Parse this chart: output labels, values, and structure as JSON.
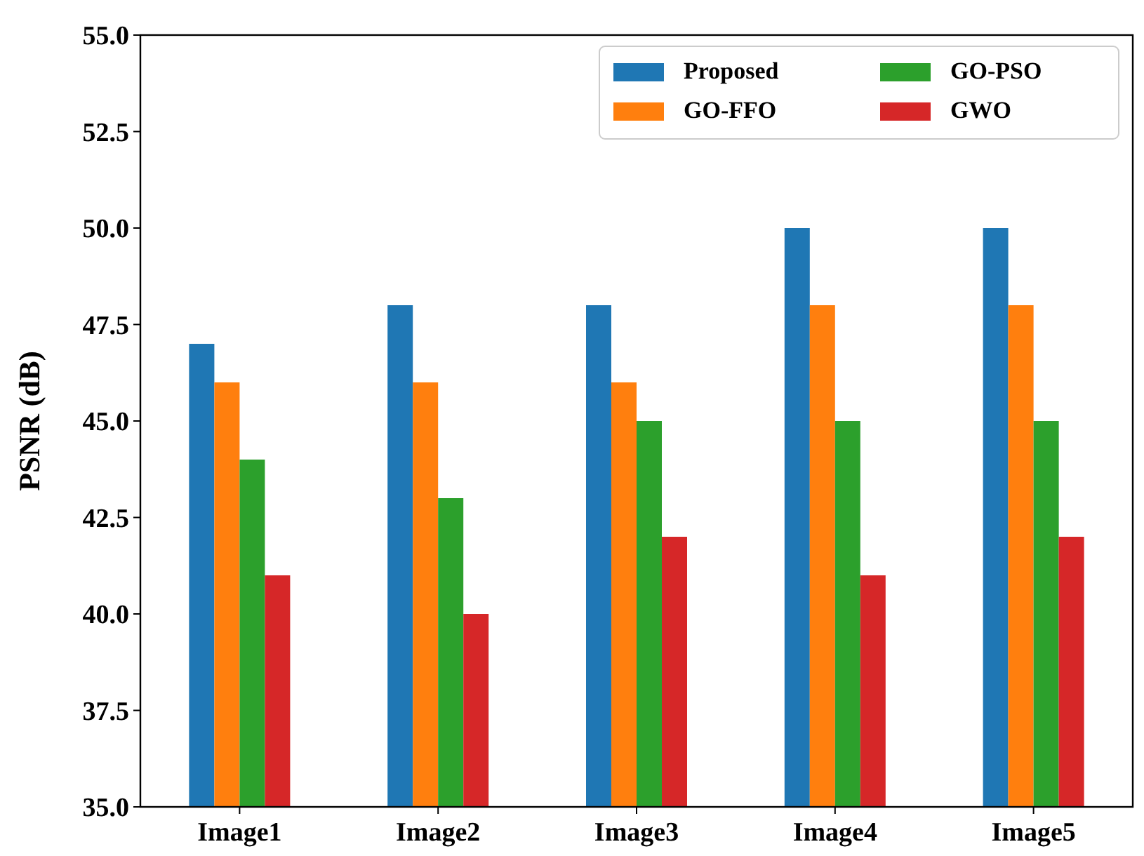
{
  "chart_data": {
    "type": "bar",
    "ylabel": "PSNR (dB)",
    "categories": [
      "Image1",
      "Image2",
      "Image3",
      "Image4",
      "Image5"
    ],
    "series": [
      {
        "name": "Proposed",
        "color": "#1f77b4",
        "values": [
          47,
          48,
          48,
          50,
          50
        ]
      },
      {
        "name": "GO-FFO",
        "color": "#ff7f0e",
        "values": [
          46,
          46,
          46,
          48,
          48
        ]
      },
      {
        "name": "GO-PSO",
        "color": "#2ca02c",
        "values": [
          44,
          43,
          45,
          45,
          45
        ]
      },
      {
        "name": "GWO",
        "color": "#d62728",
        "values": [
          41,
          40,
          42,
          41,
          42
        ]
      }
    ],
    "ylim": [
      35,
      55
    ],
    "yticks": [
      {
        "value": 35,
        "label": "35.0"
      },
      {
        "value": 37.5,
        "label": "37.5"
      },
      {
        "value": 40,
        "label": "40.0"
      },
      {
        "value": 42.5,
        "label": "42.5"
      },
      {
        "value": 45,
        "label": "45.0"
      },
      {
        "value": 47.5,
        "label": "47.5"
      },
      {
        "value": 50,
        "label": "50.0"
      },
      {
        "value": 52.5,
        "label": "52.5"
      },
      {
        "value": 55,
        "label": "55.0"
      }
    ],
    "grid": false,
    "legend": "top right"
  }
}
